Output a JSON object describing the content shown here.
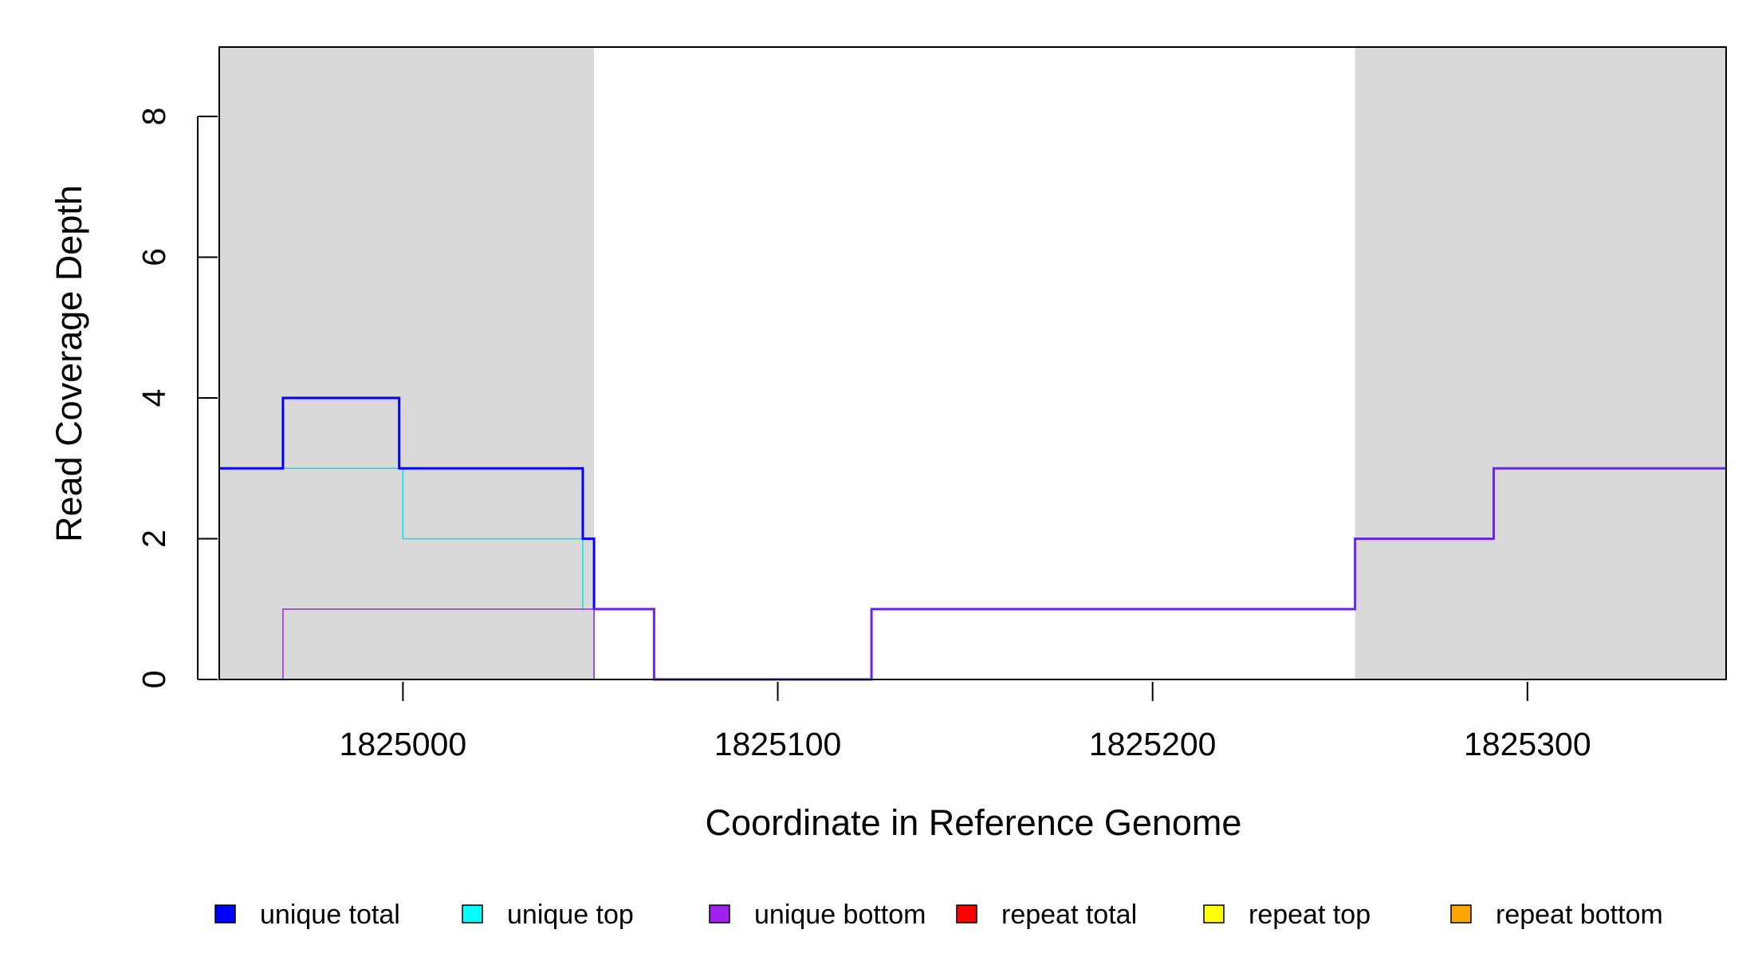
{
  "chart_data": {
    "type": "line",
    "xlabel": "Coordinate in Reference Genome",
    "ylabel": "Read Coverage Depth",
    "xlim": [
      1824951,
      1825353
    ],
    "ylim": [
      0,
      9
    ],
    "x_ticks": [
      1825000,
      1825100,
      1825200,
      1825300
    ],
    "y_ticks": [
      0,
      2,
      4,
      6,
      8
    ],
    "shaded_regions": [
      {
        "start": 1824951,
        "end": 1825051,
        "color": "#d9d9d9"
      },
      {
        "start": 1825254,
        "end": 1825353,
        "color": "#d9d9d9"
      }
    ],
    "step_series": [
      {
        "name": "unique top",
        "color": "#00e5ee",
        "width": 1.5,
        "x": [
          1824951,
          1825000,
          1825000,
          1825048,
          1825048,
          1825051,
          1825051
        ],
        "y": [
          3,
          3,
          2,
          2,
          1,
          1,
          0
        ]
      },
      {
        "name": "unique bottom",
        "color": "#a020f0",
        "width": 1.5,
        "x": [
          1824951,
          1824968,
          1824968,
          1825051,
          1825051
        ],
        "y": [
          0,
          0,
          1,
          1,
          0
        ]
      },
      {
        "name": "unique total",
        "color": "#0000ff",
        "width": 3,
        "x": [
          1824951,
          1824968,
          1824968,
          1824999,
          1824999,
          1825048,
          1825048,
          1825051,
          1825051
        ],
        "y": [
          3,
          3,
          4,
          4,
          3,
          3,
          2,
          2,
          1
        ]
      },
      {
        "name": "unique bottom",
        "color": "#6a28e6",
        "width": 3,
        "x": [
          1825051,
          1825067,
          1825067,
          1825125,
          1825125,
          1825254,
          1825254,
          1825291,
          1825291,
          1825353
        ],
        "y": [
          1,
          1,
          0,
          0,
          1,
          1,
          2,
          2,
          3,
          3
        ]
      },
      {
        "name": "repeat bottom",
        "color": "#ff8c00",
        "width": 2,
        "x": [
          1824951,
          1825051
        ],
        "y": [
          0,
          0
        ]
      },
      {
        "name": "repeat top",
        "color": "#9ab020",
        "width": 1.5,
        "x": [
          1825051,
          1825353
        ],
        "y": [
          0,
          0
        ]
      }
    ],
    "legend": {
      "position": "bottom",
      "items": [
        {
          "label": "unique total",
          "color": "#0000ff"
        },
        {
          "label": "unique top",
          "color": "#00ffff"
        },
        {
          "label": "unique bottom",
          "color": "#a020f0"
        },
        {
          "label": "repeat total",
          "color": "#ff0000"
        },
        {
          "label": "repeat top",
          "color": "#ffff00"
        },
        {
          "label": "repeat bottom",
          "color": "#ffa500"
        }
      ]
    }
  }
}
